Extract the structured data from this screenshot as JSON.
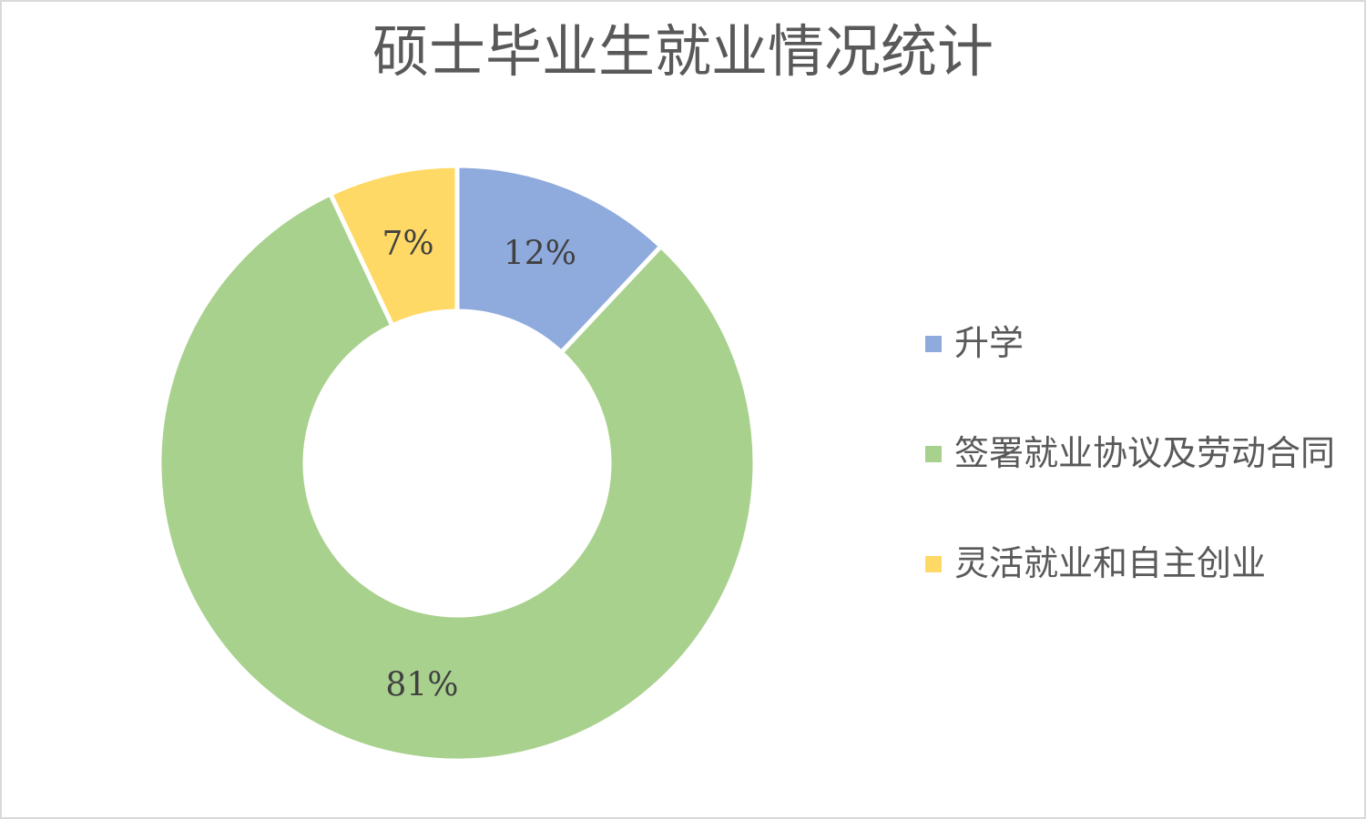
{
  "title": "硕士毕业生就业情况统计",
  "colors": {
    "background": "#ffffff",
    "frame_border": "#d9d9d9",
    "title_text": "#595959",
    "data_label_text": "#404040",
    "legend_text": "#595959",
    "slice_gap": "#ffffff"
  },
  "chart_data": {
    "type": "pie",
    "subtype": "donut",
    "title": "硕士毕业生就业情况统计",
    "legend_position": "right",
    "start_angle_deg": 0,
    "direction": "clockwise",
    "donut_hole_ratio": 0.51,
    "categories": [
      "升学",
      "签署就业协议及劳动合同",
      "灵活就业和自主创业"
    ],
    "values": [
      12,
      81,
      7
    ],
    "slices": [
      {
        "name": "升学",
        "value": 12,
        "label": "12%",
        "color": "#8faadc"
      },
      {
        "name": "签署就业协议及劳动合同",
        "value": 81,
        "label": "81%",
        "color": "#a9d18e"
      },
      {
        "name": "灵活就业和自主创业",
        "value": 7,
        "label": "7%",
        "color": "#ffd966"
      }
    ]
  }
}
